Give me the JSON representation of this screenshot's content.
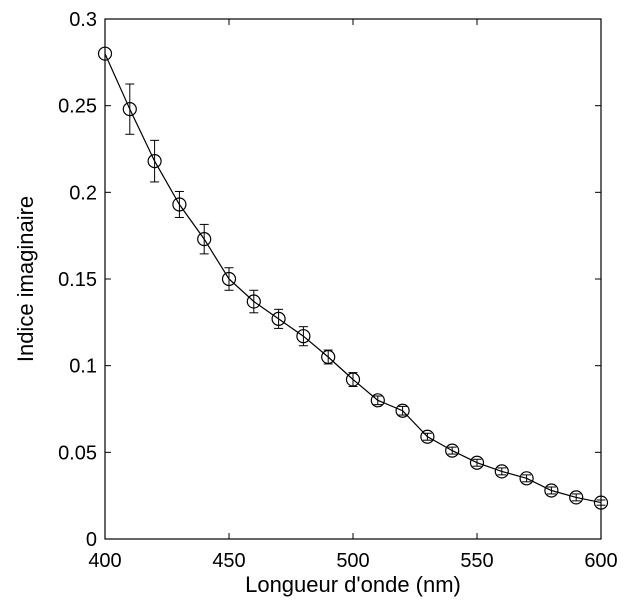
{
  "chart_data": {
    "type": "line",
    "title": "",
    "xlabel": "Longueur d'onde (nm)",
    "ylabel": "Indice imaginaire",
    "xlim": [
      400,
      600
    ],
    "ylim": [
      0,
      0.3
    ],
    "xticks": [
      400,
      450,
      500,
      550,
      600
    ],
    "xtick_labels": [
      "400",
      "450",
      "500",
      "550",
      "600"
    ],
    "yticks": [
      0,
      0.05,
      0.1,
      0.15,
      0.2,
      0.25,
      0.3
    ],
    "ytick_labels": [
      "0",
      "0.05",
      "0.1",
      "0.15",
      "0.2",
      "0.25",
      "0.3"
    ],
    "grid": false,
    "marker": "open-circle",
    "line_color": "#000000",
    "series": [
      {
        "x": [
          400,
          410,
          420,
          430,
          440,
          450,
          460,
          470,
          480,
          490,
          500,
          510,
          520,
          530,
          540,
          550,
          560,
          570,
          580,
          590,
          600
        ],
        "y": [
          0.28,
          0.248,
          0.218,
          0.193,
          0.173,
          0.15,
          0.137,
          0.127,
          0.117,
          0.105,
          0.092,
          0.08,
          0.074,
          0.059,
          0.051,
          0.044,
          0.039,
          0.035,
          0.028,
          0.024,
          0.021
        ],
        "error": [
          0.0,
          0.0145,
          0.012,
          0.0075,
          0.0085,
          0.0065,
          0.0065,
          0.0055,
          0.0055,
          0.004,
          0.004,
          0.0025,
          0.0025,
          0.002,
          0.002,
          0.002,
          0.002,
          0.002,
          0.002,
          0.002,
          0.0015
        ]
      }
    ]
  }
}
